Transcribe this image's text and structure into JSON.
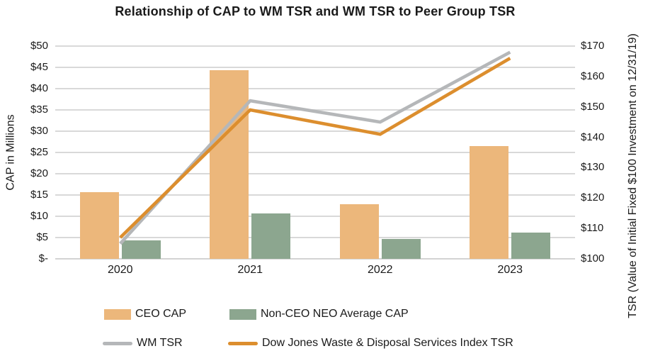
{
  "title": "Relationship of CAP to WM TSR and WM TSR to Peer Group TSR",
  "chart_data": {
    "type": "combo-bar-line",
    "categories": [
      "2020",
      "2021",
      "2022",
      "2023"
    ],
    "bar_series": [
      {
        "name": "CEO CAP",
        "axis": "left",
        "color": "#ECB77B",
        "values": [
          15.7,
          44.3,
          12.9,
          26.5
        ]
      },
      {
        "name": "Non-CEO NEO Average CAP",
        "axis": "left",
        "color": "#8CA68F",
        "values": [
          4.3,
          10.7,
          4.7,
          6.2
        ]
      }
    ],
    "line_series": [
      {
        "name": "WM TSR",
        "axis": "right",
        "color": "#B5B7B9",
        "values": [
          105,
          152,
          145,
          168
        ]
      },
      {
        "name": "Dow Jones Waste & Disposal Services Index TSR",
        "axis": "right",
        "color": "#DC8E2E",
        "values": [
          107,
          149,
          141,
          166
        ]
      }
    ],
    "left_axis": {
      "title": "CAP in Millions",
      "min": 0,
      "max": 50,
      "step": 5,
      "tick_labels": [
        "$-",
        "$5",
        "$10",
        "$15",
        "$20",
        "$25",
        "$30",
        "$35",
        "$40",
        "$45",
        "$50"
      ]
    },
    "right_axis": {
      "title": "TSR (Value of Initial Fixed $100 Investment on 12/31/19)",
      "min": 100,
      "max": 170,
      "step": 10,
      "tick_labels": [
        "$100",
        "$110",
        "$120",
        "$130",
        "$140",
        "$150",
        "$160",
        "$170"
      ]
    },
    "grid": true,
    "legend_position": "bottom"
  },
  "colors": {
    "background": "#FFFFFF",
    "gridline": "#D9D9D9",
    "text": "#1A1A1A"
  }
}
